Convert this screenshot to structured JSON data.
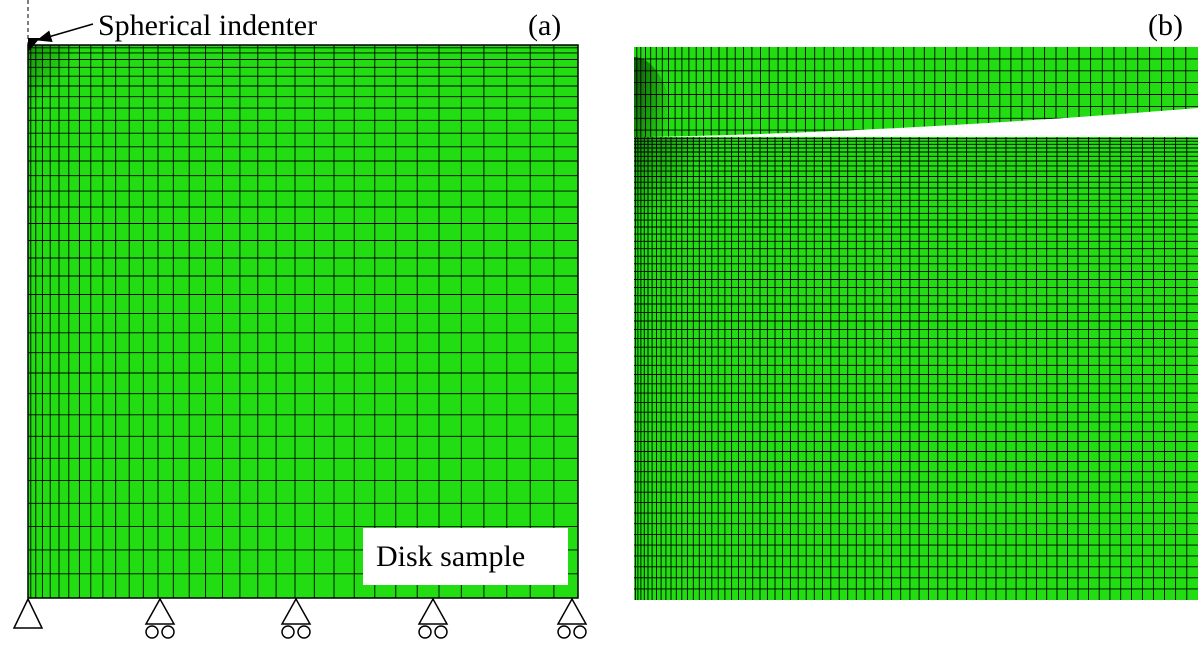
{
  "panel_a": {
    "label": "(a)",
    "indenter_label": "Spherical indenter",
    "sample_label": "Disk sample"
  },
  "panel_b": {
    "label": "(b)"
  }
}
